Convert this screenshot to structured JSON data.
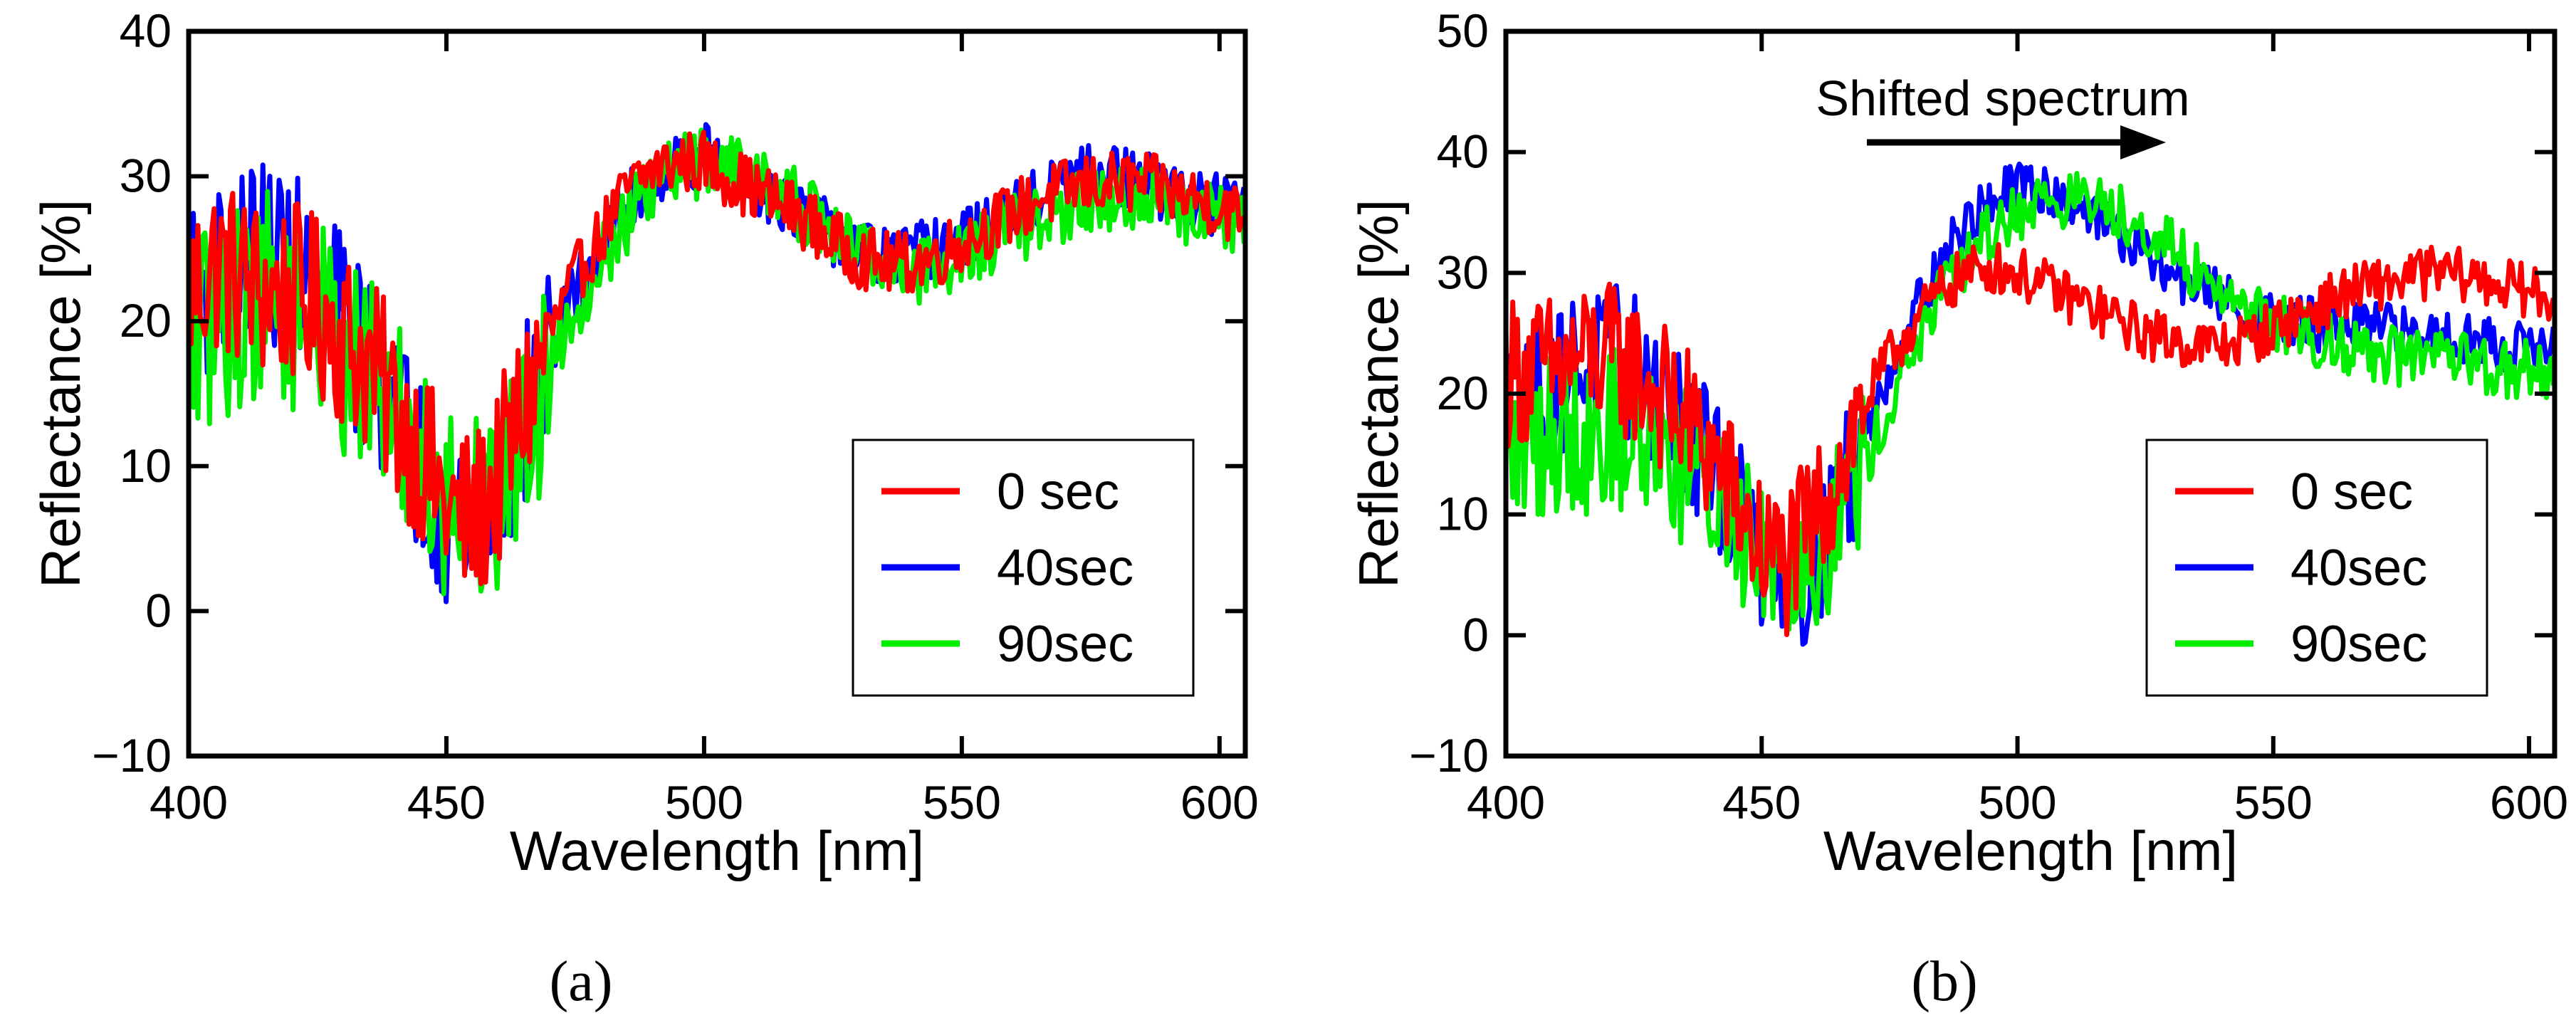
{
  "chart_data": [
    {
      "type": "line",
      "panel_label": "(a)",
      "title": "",
      "xlabel": "Wavelength [nm]",
      "ylabel": "Reflectance [%]",
      "xlim": [
        400,
        605
      ],
      "ylim": [
        -10,
        40
      ],
      "xticks": [
        400,
        450,
        500,
        550,
        600
      ],
      "yticks": [
        -10,
        0,
        10,
        20,
        30,
        40
      ],
      "xtick_labels": [
        "400",
        "450",
        "500",
        "550",
        "600"
      ],
      "ytick_labels": [
        "−10",
        "0",
        "10",
        "20",
        "30",
        "40"
      ],
      "grid": false,
      "legend_position": "bottom-right",
      "annotations": [],
      "series": [
        {
          "name": "0 sec",
          "color": "#ff0000",
          "noise_amplitude": 4,
          "points": [
            [
              400,
              22
            ],
            [
              405,
              24
            ],
            [
              410,
              23
            ],
            [
              415,
              22
            ],
            [
              420,
              22
            ],
            [
              425,
              21
            ],
            [
              430,
              19
            ],
            [
              435,
              17
            ],
            [
              440,
              14
            ],
            [
              445,
              11
            ],
            [
              450,
              7
            ],
            [
              455,
              6
            ],
            [
              460,
              9
            ],
            [
              465,
              14
            ],
            [
              470,
              19
            ],
            [
              475,
              23
            ],
            [
              480,
              26
            ],
            [
              485,
              29
            ],
            [
              490,
              30.5
            ],
            [
              495,
              31
            ],
            [
              500,
              31
            ],
            [
              505,
              30
            ],
            [
              510,
              29
            ],
            [
              515,
              28
            ],
            [
              520,
              27
            ],
            [
              525,
              25.5
            ],
            [
              530,
              24.5
            ],
            [
              535,
              24
            ],
            [
              540,
              24
            ],
            [
              545,
              24.5
            ],
            [
              550,
              25.5
            ],
            [
              555,
              26.5
            ],
            [
              560,
              27.5
            ],
            [
              565,
              28.5
            ],
            [
              570,
              29
            ],
            [
              575,
              29.5
            ],
            [
              580,
              29.5
            ],
            [
              585,
              29.5
            ],
            [
              590,
              29
            ],
            [
              595,
              28.5
            ],
            [
              600,
              28
            ],
            [
              605,
              27
            ]
          ]
        },
        {
          "name": "40sec",
          "color": "#0000ff",
          "noise_amplitude": 4,
          "points": [
            [
              400,
              21
            ],
            [
              405,
              23
            ],
            [
              410,
              24
            ],
            [
              415,
              25
            ],
            [
              420,
              24
            ],
            [
              425,
              22
            ],
            [
              430,
              20
            ],
            [
              435,
              17
            ],
            [
              440,
              14
            ],
            [
              445,
              10
            ],
            [
              450,
              7
            ],
            [
              455,
              6
            ],
            [
              460,
              8
            ],
            [
              465,
              13
            ],
            [
              470,
              18
            ],
            [
              475,
              22
            ],
            [
              480,
              25
            ],
            [
              485,
              28
            ],
            [
              490,
              30
            ],
            [
              495,
              31
            ],
            [
              500,
              31.5
            ],
            [
              505,
              30.5
            ],
            [
              510,
              29.5
            ],
            [
              515,
              28.5
            ],
            [
              520,
              27
            ],
            [
              525,
              26
            ],
            [
              530,
              25
            ],
            [
              535,
              24.5
            ],
            [
              540,
              24.5
            ],
            [
              545,
              25
            ],
            [
              550,
              25.5
            ],
            [
              555,
              26.5
            ],
            [
              560,
              27.5
            ],
            [
              565,
              28.5
            ],
            [
              570,
              29.5
            ],
            [
              575,
              30
            ],
            [
              580,
              30
            ],
            [
              585,
              29.5
            ],
            [
              590,
              29
            ],
            [
              595,
              28.5
            ],
            [
              600,
              28
            ],
            [
              605,
              27.5
            ]
          ]
        },
        {
          "name": "90sec",
          "color": "#00ee00",
          "noise_amplitude": 4.5,
          "points": [
            [
              400,
              18
            ],
            [
              405,
              20
            ],
            [
              410,
              21
            ],
            [
              415,
              22
            ],
            [
              420,
              21
            ],
            [
              425,
              20
            ],
            [
              430,
              18
            ],
            [
              435,
              16
            ],
            [
              440,
              13
            ],
            [
              445,
              11
            ],
            [
              450,
              8
            ],
            [
              455,
              7
            ],
            [
              460,
              8
            ],
            [
              465,
              12
            ],
            [
              470,
              17
            ],
            [
              475,
              21
            ],
            [
              480,
              24
            ],
            [
              485,
              27
            ],
            [
              490,
              29
            ],
            [
              495,
              30.5
            ],
            [
              500,
              31
            ],
            [
              505,
              31
            ],
            [
              510,
              30
            ],
            [
              515,
              29
            ],
            [
              520,
              27.5
            ],
            [
              525,
              26
            ],
            [
              530,
              25
            ],
            [
              535,
              24
            ],
            [
              540,
              23.5
            ],
            [
              545,
              24
            ],
            [
              550,
              24.5
            ],
            [
              555,
              25.5
            ],
            [
              560,
              26.5
            ],
            [
              565,
              27
            ],
            [
              570,
              27.5
            ],
            [
              575,
              28
            ],
            [
              580,
              28.5
            ],
            [
              585,
              28.5
            ],
            [
              590,
              28
            ],
            [
              595,
              27.5
            ],
            [
              600,
              27
            ],
            [
              605,
              26.5
            ]
          ]
        }
      ]
    },
    {
      "type": "line",
      "panel_label": "(b)",
      "title": "",
      "xlabel": "Wavelength [nm]",
      "ylabel": "Reflectance [%]",
      "xlim": [
        400,
        605
      ],
      "ylim": [
        -10,
        50
      ],
      "xticks": [
        400,
        450,
        500,
        550,
        600
      ],
      "yticks": [
        -10,
        0,
        10,
        20,
        30,
        40,
        50
      ],
      "xtick_labels": [
        "400",
        "450",
        "500",
        "550",
        "600"
      ],
      "ytick_labels": [
        "−10",
        "0",
        "10",
        "20",
        "30",
        "40",
        "50"
      ],
      "grid": false,
      "legend_position": "bottom-right",
      "annotations": [
        {
          "text": "Shifted spectrum",
          "arrow_from": [
            470,
            41.5
          ],
          "arrow_to": [
            530,
            41.5
          ],
          "text_anchor": [
            495,
            45
          ]
        }
      ],
      "series": [
        {
          "name": "0 sec",
          "color": "#ff0000",
          "noise_amplitude": 4,
          "points": [
            [
              400,
              22
            ],
            [
              405,
              22
            ],
            [
              410,
              22
            ],
            [
              415,
              23
            ],
            [
              420,
              23
            ],
            [
              425,
              22
            ],
            [
              430,
              20
            ],
            [
              435,
              18
            ],
            [
              440,
              15
            ],
            [
              445,
              11
            ],
            [
              450,
              7
            ],
            [
              455,
              6
            ],
            [
              460,
              9
            ],
            [
              465,
              14
            ],
            [
              470,
              19
            ],
            [
              475,
              23
            ],
            [
              480,
              26
            ],
            [
              485,
              28.5
            ],
            [
              490,
              30
            ],
            [
              495,
              30.5
            ],
            [
              500,
              30
            ],
            [
              505,
              29
            ],
            [
              510,
              28
            ],
            [
              515,
              27
            ],
            [
              520,
              26
            ],
            [
              525,
              25
            ],
            [
              530,
              24.5
            ],
            [
              535,
              24
            ],
            [
              540,
              24
            ],
            [
              545,
              24.5
            ],
            [
              550,
              25.5
            ],
            [
              555,
              26.5
            ],
            [
              560,
              27.5
            ],
            [
              565,
              28.5
            ],
            [
              570,
              29
            ],
            [
              575,
              29.5
            ],
            [
              580,
              30
            ],
            [
              585,
              30
            ],
            [
              590,
              29.5
            ],
            [
              595,
              29
            ],
            [
              600,
              28.5
            ],
            [
              605,
              27.5
            ]
          ]
        },
        {
          "name": "40sec",
          "color": "#0000ff",
          "noise_amplitude": 4,
          "points": [
            [
              400,
              19
            ],
            [
              405,
              20
            ],
            [
              410,
              21
            ],
            [
              415,
              23
            ],
            [
              420,
              23
            ],
            [
              425,
              22
            ],
            [
              430,
              20
            ],
            [
              435,
              17
            ],
            [
              440,
              14
            ],
            [
              445,
              10
            ],
            [
              450,
              7
            ],
            [
              455,
              5
            ],
            [
              460,
              6
            ],
            [
              465,
              11
            ],
            [
              470,
              16
            ],
            [
              475,
              22
            ],
            [
              480,
              27
            ],
            [
              485,
              31
            ],
            [
              490,
              34
            ],
            [
              495,
              36
            ],
            [
              500,
              37
            ],
            [
              505,
              37
            ],
            [
              510,
              36
            ],
            [
              515,
              35
            ],
            [
              520,
              33
            ],
            [
              525,
              31.5
            ],
            [
              530,
              30
            ],
            [
              535,
              29
            ],
            [
              540,
              28
            ],
            [
              545,
              27
            ],
            [
              550,
              26
            ],
            [
              555,
              26
            ],
            [
              560,
              25.5
            ],
            [
              565,
              25.5
            ],
            [
              570,
              25.5
            ],
            [
              575,
              25
            ],
            [
              580,
              25
            ],
            [
              585,
              25
            ],
            [
              590,
              24.5
            ],
            [
              595,
              24
            ],
            [
              600,
              24
            ],
            [
              605,
              23.5
            ]
          ]
        },
        {
          "name": "90sec",
          "color": "#00ee00",
          "noise_amplitude": 4.5,
          "points": [
            [
              400,
              15
            ],
            [
              405,
              16
            ],
            [
              410,
              17
            ],
            [
              415,
              17
            ],
            [
              420,
              17
            ],
            [
              425,
              17
            ],
            [
              430,
              16
            ],
            [
              435,
              14
            ],
            [
              440,
              12
            ],
            [
              445,
              10
            ],
            [
              450,
              8
            ],
            [
              455,
              7
            ],
            [
              460,
              7
            ],
            [
              465,
              10
            ],
            [
              470,
              14
            ],
            [
              475,
              19
            ],
            [
              480,
              24
            ],
            [
              485,
              28
            ],
            [
              490,
              31
            ],
            [
              495,
              33.5
            ],
            [
              500,
              35
            ],
            [
              505,
              36
            ],
            [
              510,
              36
            ],
            [
              515,
              36
            ],
            [
              520,
              35
            ],
            [
              525,
              34
            ],
            [
              530,
              32
            ],
            [
              535,
              30
            ],
            [
              540,
              28.5
            ],
            [
              545,
              27
            ],
            [
              550,
              26
            ],
            [
              555,
              25
            ],
            [
              560,
              24.5
            ],
            [
              565,
              24
            ],
            [
              570,
              23.5
            ],
            [
              575,
              23
            ],
            [
              580,
              23
            ],
            [
              585,
              22.5
            ],
            [
              590,
              22.5
            ],
            [
              595,
              22
            ],
            [
              600,
              22
            ],
            [
              605,
              21.5
            ]
          ]
        }
      ]
    }
  ]
}
